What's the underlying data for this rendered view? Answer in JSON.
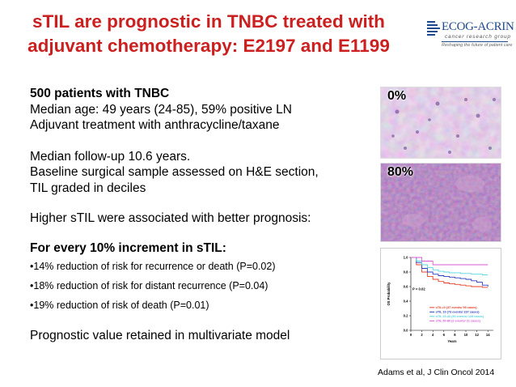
{
  "slide": {
    "title_line1": "sTIL are prognostic in TNBC treated with",
    "title_line2": "adjuvant chemotherapy: E2197 and E1199",
    "colors": {
      "title": "#cc1f1f",
      "logo": "#1d4a8c"
    }
  },
  "logo": {
    "name": "ECOG-ACRIN",
    "sub1": "cancer research group",
    "sub2": "Reshaping the future of patient care"
  },
  "content": {
    "line1": "500 patients with TNBC",
    "line2": "Median age: 49 years (24-85), 59% positive LN",
    "line3": "Adjuvant treatment with anthracycline/taxane",
    "line4": "Median follow-up 10.6 years.",
    "line5": "Baseline surgical sample assessed on H&E section,",
    "line6": "TIL graded in deciles",
    "line7": "Higher sTIL were associated with better prognosis:",
    "line8": "For every 10% increment in sTIL:",
    "bullet1": "•14% reduction of risk for recurrence or death (P=0.02)",
    "bullet2": "•18% reduction of risk for distant recurrence (P=0.04)",
    "bullet3": "•19% reduction of risk of death (P=0.01)",
    "line9": "Prognostic value retained in multivariate model"
  },
  "histology": {
    "label_top": "0%",
    "label_bottom": "80%"
  },
  "chart_data": {
    "type": "line",
    "title": "",
    "xlabel": "Years",
    "ylabel": "OS Probability",
    "xlim": [
      0,
      15
    ],
    "ylim": [
      0,
      1.0
    ],
    "xticks": [
      "0",
      "2",
      "4",
      "6",
      "8",
      "10",
      "12",
      "14"
    ],
    "yticks": [
      "0.0",
      "0.2",
      "0.4",
      "0.6",
      "0.8",
      "1.0"
    ],
    "annotation": "P = 0.02",
    "series": [
      {
        "name": "sTIL=0  (37 events/ 95 cases)",
        "color": "#e8402a",
        "x": [
          0,
          1,
          2,
          3,
          4,
          5,
          6,
          7,
          8,
          9,
          10,
          11,
          12,
          13,
          14
        ],
        "y": [
          1.0,
          0.9,
          0.8,
          0.74,
          0.7,
          0.67,
          0.65,
          0.64,
          0.63,
          0.62,
          0.61,
          0.6,
          0.6,
          0.59,
          0.59
        ]
      },
      {
        "name": "sTIL 10  (73 events/ 237 cases)",
        "color": "#2a3fbf",
        "x": [
          0,
          1,
          2,
          3,
          4,
          5,
          6,
          7,
          8,
          9,
          10,
          11,
          12,
          13,
          14
        ],
        "y": [
          1.0,
          0.93,
          0.85,
          0.8,
          0.77,
          0.75,
          0.74,
          0.73,
          0.72,
          0.71,
          0.7,
          0.68,
          0.66,
          0.62,
          0.6
        ]
      },
      {
        "name": "sTIL 20-40  (30 events/ 128 cases)",
        "color": "#55d6e0",
        "x": [
          0,
          1,
          2,
          3,
          4,
          5,
          6,
          7,
          8,
          9,
          10,
          11,
          12,
          13,
          14
        ],
        "y": [
          1.0,
          0.95,
          0.9,
          0.86,
          0.83,
          0.81,
          0.8,
          0.79,
          0.79,
          0.78,
          0.78,
          0.77,
          0.77,
          0.76,
          0.76
        ]
      },
      {
        "name": "sTIL 50-80  (2 events/ 21 cases)",
        "color": "#d95ad6",
        "x": [
          0,
          1,
          2,
          3,
          4,
          5,
          6,
          7,
          8,
          9,
          10,
          11,
          12,
          13,
          14
        ],
        "y": [
          1.0,
          1.0,
          0.95,
          0.95,
          0.9,
          0.9,
          0.9,
          0.9,
          0.9,
          0.9,
          0.9,
          0.9,
          0.9,
          0.9,
          0.9
        ]
      }
    ]
  },
  "citation": "Adams et al, J Clin Oncol 2014"
}
